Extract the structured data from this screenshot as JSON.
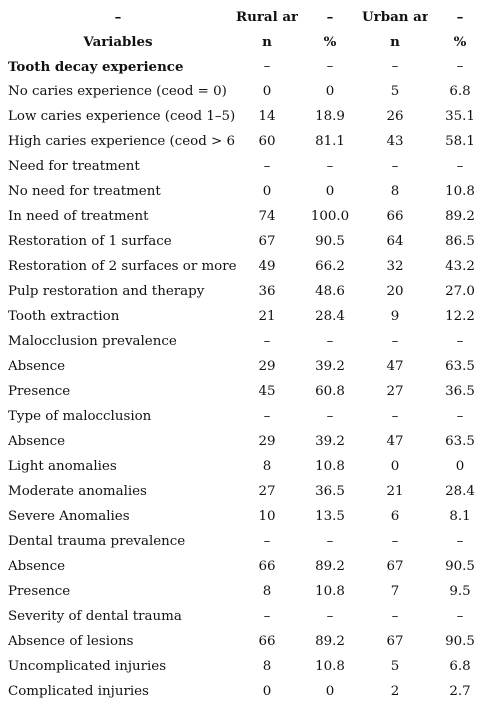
{
  "header": {
    "row1": [
      "–",
      "Rural area",
      "–",
      "Urban area",
      "–"
    ],
    "row2": [
      "Variables",
      "n",
      "%",
      "n",
      "%"
    ]
  },
  "rows": [
    {
      "label": "Tooth decay experience",
      "bold": true,
      "values": [
        "–",
        "–",
        "–",
        "–"
      ]
    },
    {
      "label": "No caries experience (ceod = 0)",
      "values": [
        "0",
        "0",
        "5",
        "6.8"
      ]
    },
    {
      "label": "Low caries experience (ceod 1–5)",
      "values": [
        "14",
        "18.9",
        "26",
        "35.1"
      ]
    },
    {
      "label": "High caries experience (ceod > 6)",
      "values": [
        "60",
        "81.1",
        "43",
        "58.1"
      ]
    },
    {
      "label": "Need for treatment",
      "values": [
        "–",
        "–",
        "–",
        "–"
      ]
    },
    {
      "label": "No need for treatment",
      "values": [
        "0",
        "0",
        "8",
        "10.8"
      ]
    },
    {
      "label": "In need of treatment",
      "values": [
        "74",
        "100.0",
        "66",
        "89.2"
      ]
    },
    {
      "label": "Restoration of 1 surface",
      "values": [
        "67",
        "90.5",
        "64",
        "86.5"
      ]
    },
    {
      "label": "Restoration of 2 surfaces or more",
      "values": [
        "49",
        "66.2",
        "32",
        "43.2"
      ]
    },
    {
      "label": "Pulp restoration and therapy",
      "values": [
        "36",
        "48.6",
        "20",
        "27.0"
      ]
    },
    {
      "label": "Tooth extraction",
      "values": [
        "21",
        "28.4",
        "9",
        "12.2"
      ]
    },
    {
      "label": "Malocclusion prevalence",
      "values": [
        "–",
        "–",
        "–",
        "–"
      ]
    },
    {
      "label": "Absence",
      "values": [
        "29",
        "39.2",
        "47",
        "63.5"
      ]
    },
    {
      "label": "Presence",
      "values": [
        "45",
        "60.8",
        "27",
        "36.5"
      ]
    },
    {
      "label": "Type of malocclusion",
      "values": [
        "–",
        "–",
        "–",
        "–"
      ]
    },
    {
      "label": "Absence",
      "values": [
        "29",
        "39.2",
        "47",
        "63.5"
      ]
    },
    {
      "label": "Light anomalies",
      "values": [
        "8",
        "10.8",
        "0",
        "0"
      ]
    },
    {
      "label": "Moderate anomalies",
      "values": [
        "27",
        "36.5",
        "21",
        "28.4"
      ]
    },
    {
      "label": "Severe Anomalies",
      "values": [
        "10",
        "13.5",
        "6",
        "8.1"
      ]
    },
    {
      "label": "Dental trauma prevalence",
      "values": [
        "–",
        "–",
        "–",
        "–"
      ]
    },
    {
      "label": "Absence",
      "values": [
        "66",
        "89.2",
        "67",
        "90.5"
      ]
    },
    {
      "label": "Presence",
      "values": [
        "8",
        "10.8",
        "7",
        "9.5"
      ]
    },
    {
      "label": "Severity of dental trauma",
      "values": [
        "–",
        "–",
        "–",
        "–"
      ]
    },
    {
      "label": "Absence of lesions",
      "values": [
        "66",
        "89.2",
        "67",
        "90.5"
      ]
    },
    {
      "label": "Uncomplicated injuries",
      "values": [
        "8",
        "10.8",
        "5",
        "6.8"
      ]
    },
    {
      "label": "Complicated injuries",
      "values": [
        "0",
        "0",
        "2",
        "2.7"
      ]
    }
  ]
}
